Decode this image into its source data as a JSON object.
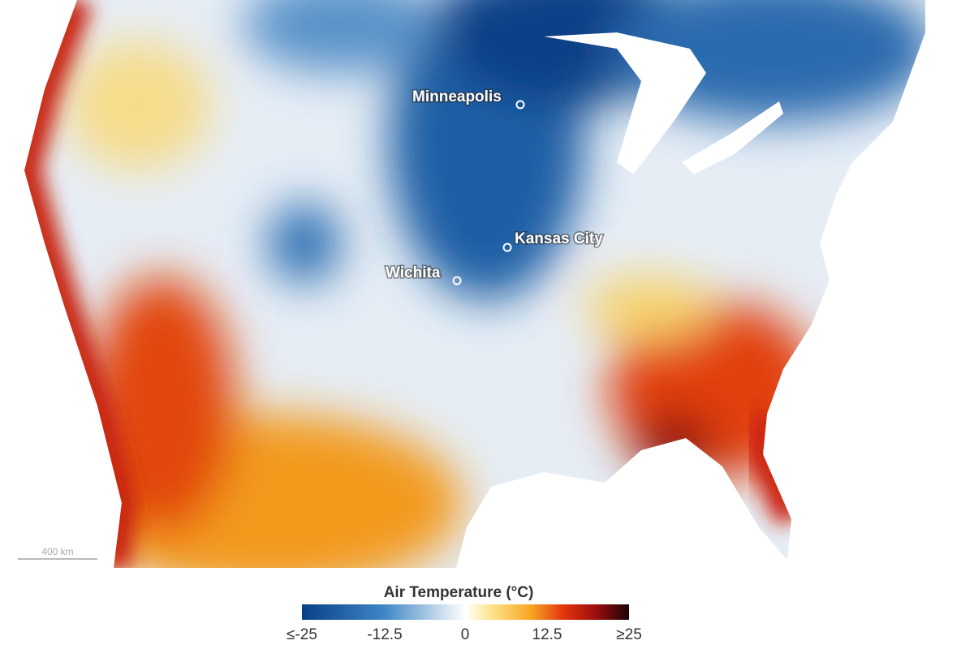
{
  "map": {
    "cities": [
      {
        "label": "Minneapolis"
      },
      {
        "label": "Kansas City"
      },
      {
        "label": "Wichita"
      }
    ],
    "scale_bar": {
      "label": "400 km"
    },
    "legend": {
      "title": "Air Temperature (°C)",
      "ticks": [
        "≤-25",
        "-12.5",
        "0",
        "12.5",
        "≥25"
      ]
    }
  }
}
